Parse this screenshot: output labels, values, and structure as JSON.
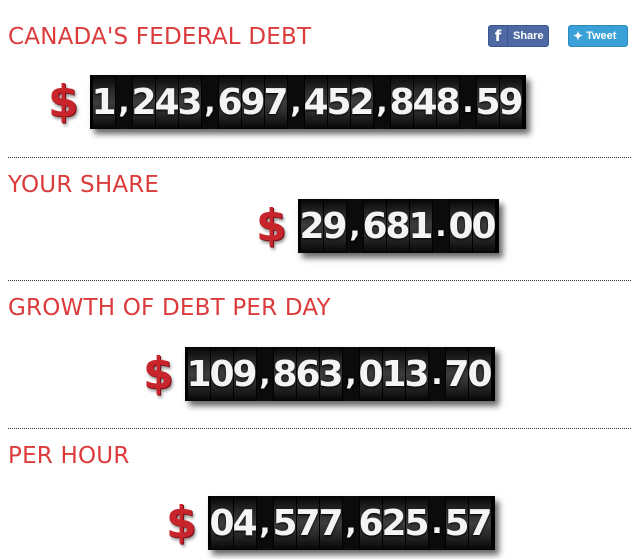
{
  "sections": [
    {
      "title": "CANADA'S FEDERAL DEBT",
      "currency": "$",
      "value": "1,243,697,452,848.59"
    },
    {
      "title": "YOUR SHARE",
      "currency": "$",
      "value": "29,681.00"
    },
    {
      "title": "GROWTH OF DEBT PER DAY",
      "currency": "$",
      "value": "109,863,013.70"
    },
    {
      "title": "PER HOUR",
      "currency": "$",
      "value": "04,577,625.57"
    }
  ],
  "social": {
    "share_label": "Share",
    "tweet_label": "Tweet",
    "share_icon": "facebook-icon",
    "tweet_icon": "twitter-bird-icon"
  }
}
